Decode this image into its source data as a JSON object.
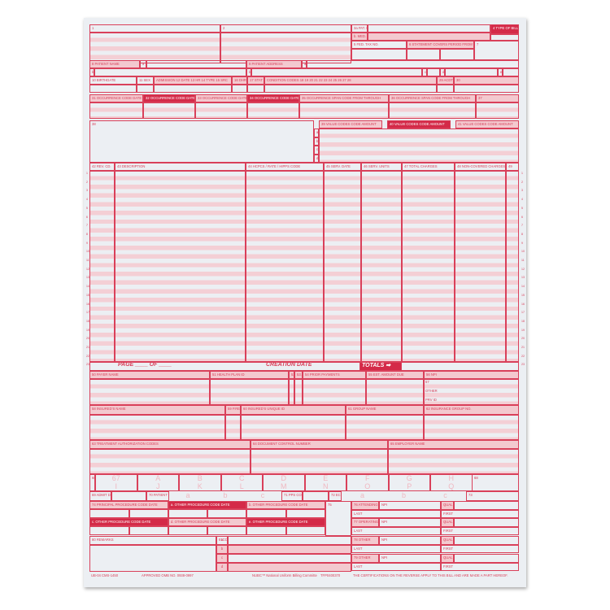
{
  "form": {
    "f1": "1",
    "f2": "2",
    "f3a": "3a PAT. CNTL #",
    "f3b": "b. MED. REC. #",
    "f4": "4 TYPE OF BILL",
    "f5": "5 FED. TAX NO.",
    "f6": "6 STATEMENT COVERS PERIOD FROM THROUGH",
    "f7": "7",
    "f8": "8 PATIENT NAME",
    "f8a": "a",
    "f8b": "b",
    "f9": "9 PATIENT ADDRESS",
    "f9a": "a",
    "f9b": "b",
    "f9c": "c",
    "f9d": "d",
    "f9e": "e",
    "f10": "10 BIRTHDATE",
    "f11": "11 SEX",
    "f12": "ADMISSION 12 DATE 13 HR 14 TYPE 15 SRC",
    "f16": "16 DHR",
    "f17": "17 STAT",
    "f18": "CONDITION CODES 18 19 20 21 22 23 24 25 26 27 28",
    "f29": "29 ACDT STATE",
    "f30": "30",
    "f31": "31 OCCURRENCE CODE DATE",
    "f32": "32 OCCURRENCE CODE DATE",
    "f33": "33 OCCURRENCE CODE DATE",
    "f34": "34 OCCURRENCE CODE DATE",
    "f35": "35 OCCURRENCE SPAN CODE FROM THROUGH",
    "f36": "36 OCCURRENCE SPAN CODE FROM THROUGH",
    "f37": "37",
    "f38": "38",
    "f39": "39 VALUE CODES CODE AMOUNT",
    "f40": "40 VALUE CODES CODE AMOUNT",
    "f41": "41 VALUE CODES CODE AMOUNT",
    "vrows": [
      "a",
      "b",
      "c",
      "d"
    ],
    "f42": "42 REV. CD.",
    "f43": "43 DESCRIPTION",
    "f44": "44 HCPCS / RATE / HIPPS CODE",
    "f45": "45 SERV. DATE",
    "f46": "46 SERV. UNITS",
    "f47": "47 TOTAL CHARGES",
    "f48": "48 NON-COVERED CHARGES",
    "f49": "49",
    "page": "PAGE ____ OF ____",
    "creation_date": "CREATION DATE",
    "totals": "TOTALS ➡",
    "f50": "50 PAYER NAME",
    "f51": "51 HEALTH PLAN ID",
    "f52": "52 REL INFO",
    "f53": "53 ASG BEN.",
    "f54": "54 PRIOR PAYMENTS",
    "f55": "55 EST. AMOUNT DUE",
    "f56": "56 NPI",
    "f57": "57",
    "other": "OTHER",
    "prv_id": "PRV ID",
    "f58": "58 INSURED'S NAME",
    "f59": "59 P.REL",
    "f60": "60 INSURED'S UNIQUE ID",
    "f61": "61 GROUP NAME",
    "f62": "62 INSURANCE GROUP NO.",
    "f63": "63 TREATMENT AUTHORIZATION CODES",
    "f64": "64 DOCUMENT CONTROL NUMBER",
    "f65": "65 EMPLOYER NAME",
    "f66": "66 DX",
    "dx1": [
      "67",
      "A",
      "B",
      "C",
      "D",
      "E",
      "F",
      "G",
      "H"
    ],
    "dx2": [
      "I",
      "J",
      "K",
      "L",
      "M",
      "N",
      "O",
      "P",
      "Q"
    ],
    "f68": "68",
    "f69": "69 ADMIT DX",
    "f70": "70 PATIENT REASON DX",
    "r70": [
      "a",
      "b",
      "c"
    ],
    "f71": "71 PPS CODE",
    "f72": "72 ECI",
    "r72": [
      "a",
      "b",
      "c"
    ],
    "f73": "73",
    "f74": "74 PRINCIPAL PROCEDURE CODE DATE",
    "f74a": "a. OTHER PROCEDURE CODE DATE",
    "f74b": "b. OTHER PROCEDURE CODE DATE",
    "f74c": "c. OTHER PROCEDURE CODE DATE",
    "f74d": "d. OTHER PROCEDURE CODE DATE",
    "f74e": "e. OTHER PROCEDURE CODE DATE",
    "f75": "75",
    "f76": "76 ATTENDING",
    "f77": "77 OPERATING",
    "f78": "78 OTHER",
    "f79": "79 OTHER",
    "npi": "NPI",
    "qual": "QUAL",
    "last": "LAST",
    "first": "FIRST",
    "f80": "80 REMARKS",
    "f81": "81CC",
    "r81": [
      "a",
      "b",
      "c",
      "d"
    ],
    "footer_left": "UB-04 CMS-1450",
    "footer_omb": "APPROVED OMB NO. 0938-0997",
    "footer_brand": "NUBC™ National Uniform Billing Committee",
    "footer_code": "TFP0400370",
    "footer_right": "THE CERTIFICATIONS ON THE REVERSE APPLY TO THIS BILL AND ARE MADE A PART HEREOF."
  },
  "colors": {
    "line": "#d9405a",
    "fill": "#f3c9cf",
    "accent": "#d42a48",
    "paper": "#eceff3"
  }
}
